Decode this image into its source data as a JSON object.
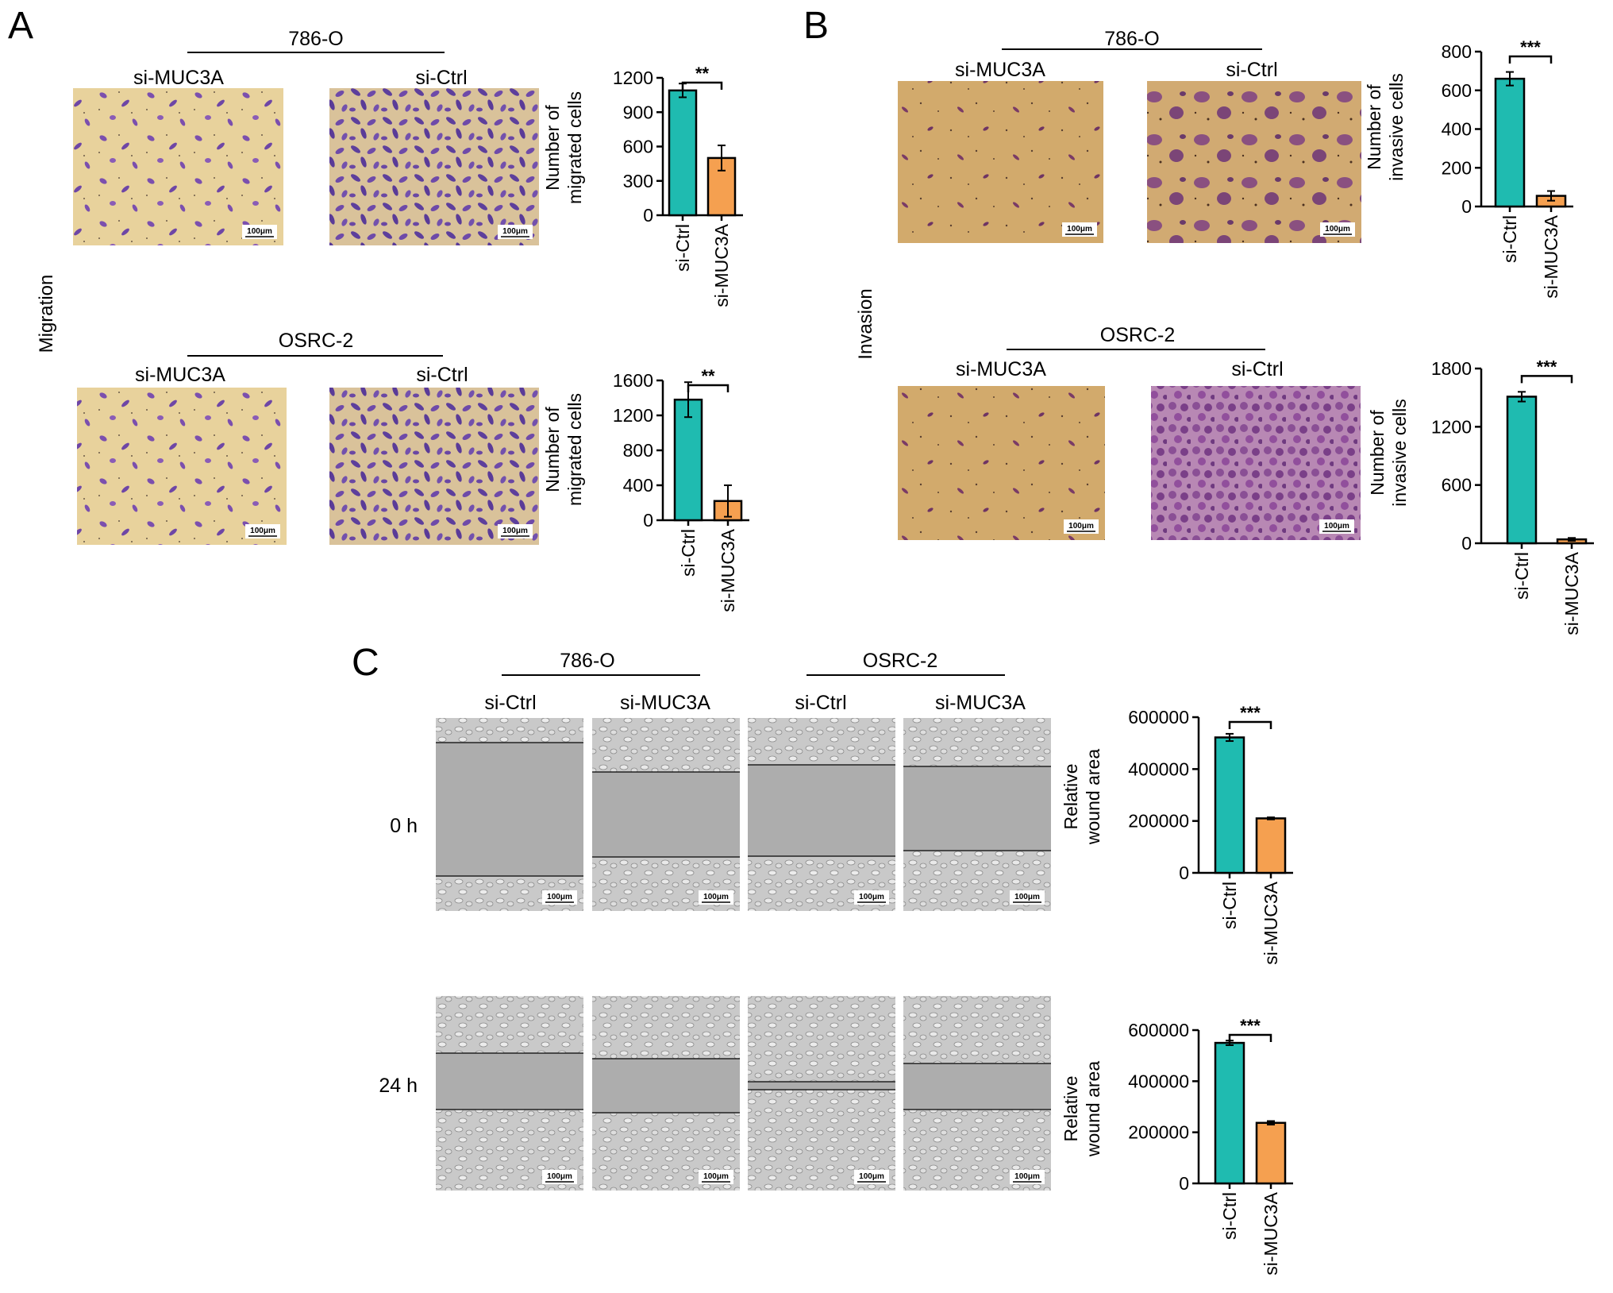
{
  "panels": {
    "A": {
      "label": "A",
      "side_label": "Migration",
      "rows": [
        {
          "cell_line": "786-O",
          "images": [
            "si-MUC3A",
            "si-Ctrl"
          ]
        },
        {
          "cell_line": "OSRC-2",
          "images": [
            "si-MUC3A",
            "si-Ctrl"
          ]
        }
      ]
    },
    "B": {
      "label": "B",
      "side_label": "Invasion",
      "rows": [
        {
          "cell_line": "786-O",
          "images": [
            "si-MUC3A",
            "si-Ctrl"
          ]
        },
        {
          "cell_line": "OSRC-2",
          "images": [
            "si-MUC3A",
            "si-Ctrl"
          ]
        }
      ]
    },
    "C": {
      "label": "C",
      "cell_lines": [
        "786-O",
        "OSRC-2"
      ],
      "columns": [
        "si-Ctrl",
        "si-MUC3A",
        "si-Ctrl",
        "si-MUC3A"
      ],
      "times": [
        "0 h",
        "24 h"
      ]
    }
  },
  "scale_bar": "100μm",
  "colors": {
    "si_ctrl_bar": "#1fbbb0",
    "si_muc3a_bar": "#f5a050",
    "transwell_bg": "#e5cd98",
    "transwell_stain": "#7a4aa8",
    "wound_bg": "#b3b3b3",
    "wound_cells": "#d6d6d6"
  },
  "chart_data": [
    {
      "type": "bar",
      "id": "A-786O",
      "categories": [
        "si-Ctrl",
        "si-MUC3A"
      ],
      "values": [
        1090,
        500
      ],
      "errors": [
        60,
        110
      ],
      "ylabel": [
        "Number of",
        "migrated cells"
      ],
      "ylim": [
        0,
        1200
      ],
      "yticks": [
        0,
        300,
        600,
        900,
        1200
      ],
      "significance": "**"
    },
    {
      "type": "bar",
      "id": "A-OSRC2",
      "categories": [
        "si-Ctrl",
        "si-MUC3A"
      ],
      "values": [
        1380,
        220
      ],
      "errors": [
        200,
        180
      ],
      "ylabel": [
        "Number of",
        "migrated cells"
      ],
      "ylim": [
        0,
        1600
      ],
      "yticks": [
        0,
        400,
        800,
        1200,
        1600
      ],
      "significance": "**"
    },
    {
      "type": "bar",
      "id": "B-786O",
      "categories": [
        "si-Ctrl",
        "si-MUC3A"
      ],
      "values": [
        660,
        55
      ],
      "errors": [
        35,
        25
      ],
      "ylabel": [
        "Number of",
        "invasive cells"
      ],
      "ylim": [
        0,
        800
      ],
      "yticks": [
        0,
        200,
        400,
        600,
        800
      ],
      "significance": "***"
    },
    {
      "type": "bar",
      "id": "B-OSRC2",
      "categories": [
        "si-Ctrl",
        "si-MUC3A"
      ],
      "values": [
        1510,
        40
      ],
      "errors": [
        50,
        15
      ],
      "ylabel": [
        "Number of",
        "invasive cells"
      ],
      "ylim": [
        0,
        1800
      ],
      "yticks": [
        0,
        600,
        1200,
        1800
      ],
      "significance": "***"
    },
    {
      "type": "bar",
      "id": "C-0h",
      "categories": [
        "si-Ctrl",
        "si-MUC3A"
      ],
      "values": [
        522000,
        210000
      ],
      "errors": [
        14000,
        4000
      ],
      "ylabel": [
        "Relative",
        "wound area"
      ],
      "ylim": [
        0,
        600000
      ],
      "yticks": [
        0,
        200000,
        400000,
        600000
      ],
      "significance": "***"
    },
    {
      "type": "bar",
      "id": "C-24h",
      "categories": [
        "si-Ctrl",
        "si-MUC3A"
      ],
      "values": [
        550000,
        237000
      ],
      "errors": [
        9000,
        7000
      ],
      "ylabel": [
        "Relative",
        "wound area"
      ],
      "ylim": [
        0,
        600000
      ],
      "yticks": [
        0,
        200000,
        400000,
        600000
      ],
      "significance": "***"
    }
  ]
}
